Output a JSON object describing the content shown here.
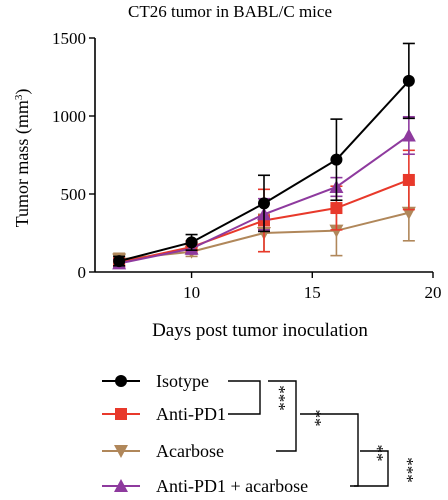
{
  "chart_data": {
    "type": "line",
    "title": "CT26 tumor in BABL/C mice",
    "xlabel": "Days post tumor inoculation",
    "ylabel_main": "Tumor mass (mm",
    "ylabel_sup": "3",
    "ylabel_close": ")",
    "xlim": [
      6,
      20
    ],
    "ylim": [
      0,
      1500
    ],
    "x_ticks": [
      10,
      15,
      20
    ],
    "y_ticks": [
      0,
      500,
      1000,
      1500
    ],
    "x_tick_labels": [
      "10",
      "15",
      "20"
    ],
    "y_tick_labels": [
      "0",
      "500",
      "1000",
      "1500"
    ],
    "grid": false,
    "legend_position": "bottom",
    "x": [
      7,
      10,
      13,
      16,
      19
    ],
    "series": [
      {
        "name": "Isotype",
        "color": "#000000",
        "marker": "circle",
        "values": [
          70,
          190,
          440,
          720,
          1225
        ],
        "errors": [
          30,
          50,
          180,
          260,
          240
        ]
      },
      {
        "name": "Anti-PD1",
        "color": "#e8392b",
        "marker": "square",
        "values": [
          60,
          160,
          330,
          410,
          590
        ],
        "errors": [
          25,
          40,
          200,
          140,
          190
        ]
      },
      {
        "name": "Acarbose",
        "color": "#b0875a",
        "marker": "triangle-down",
        "values": [
          80,
          130,
          250,
          265,
          380
        ],
        "errors": [
          40,
          30,
          120,
          160,
          180
        ]
      },
      {
        "name": "Anti-PD1 + acarbose",
        "color": "#8e3a9e",
        "marker": "triangle-up",
        "values": [
          55,
          150,
          370,
          545,
          875
        ],
        "errors": [
          25,
          35,
          100,
          60,
          120
        ]
      }
    ],
    "significance": [
      {
        "between": "Isotype / Anti-PD1",
        "label": "***"
      },
      {
        "between": "Isotype / Acarbose",
        "label": "**"
      },
      {
        "between": "Anti-PD1 + acarbose / Anti-PD1",
        "label": "**"
      },
      {
        "between": "Anti-PD1 + acarbose / Acarbose",
        "label": "***"
      }
    ]
  }
}
